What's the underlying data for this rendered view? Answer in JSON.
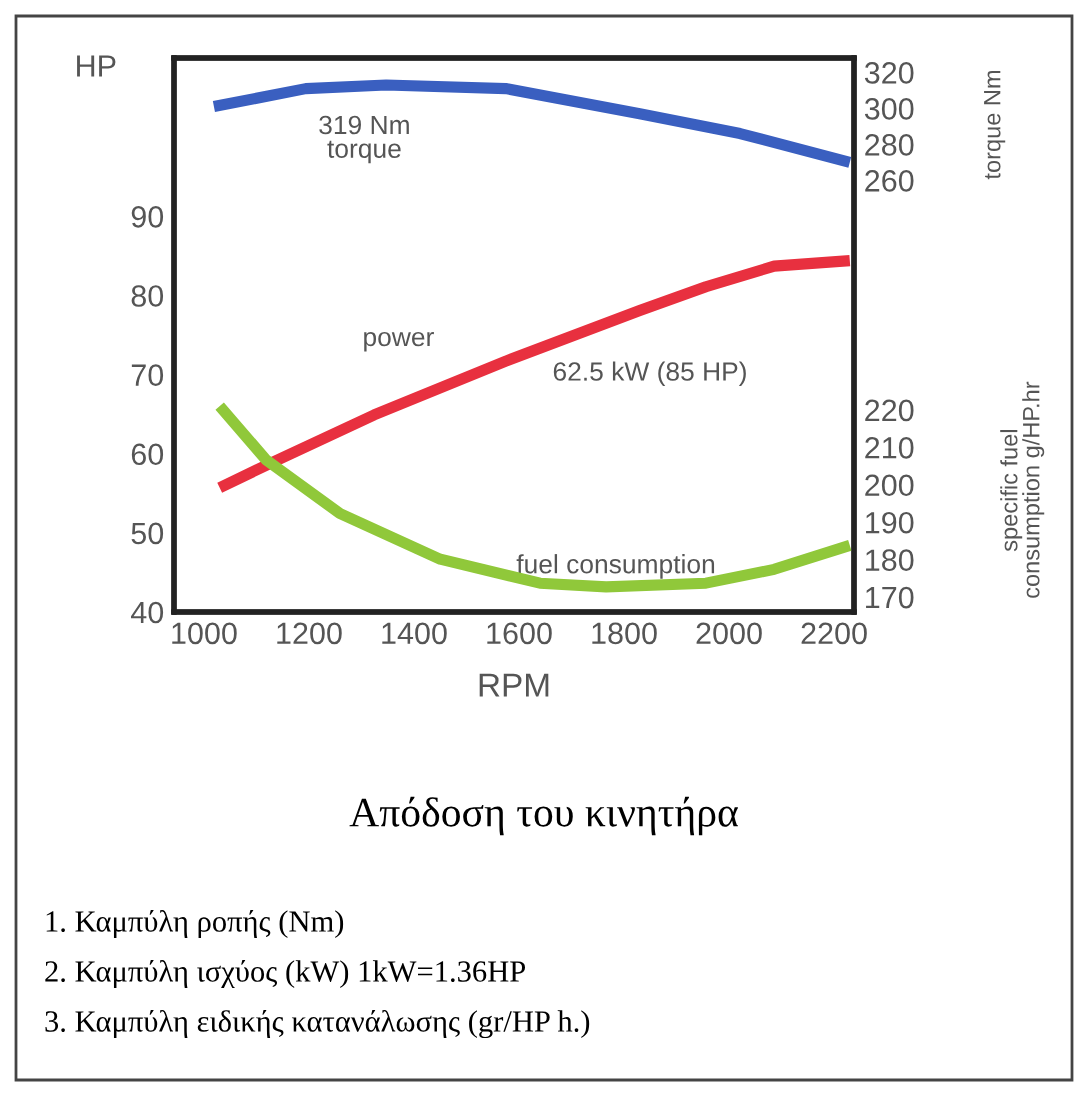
{
  "chart_data": {
    "type": "line",
    "title": "Απόδοση του κινητήρα",
    "xlabel": "RPM",
    "ylabel": "HP",
    "y2label": "torque Nm",
    "y3label": "specific fuel\nconsumption g/HP.hr",
    "annotations": [
      "319 Nm",
      "62.5 kW (85 HP)",
      "1. Καμπύλη ροπής (Nm)",
      "2. Καμπύλη ισχύος (kW) 1kW=1.36HP",
      "3. Καμπύλη ειδικής κατανάλωσης (gr/HP h.)"
    ],
    "xlim": [
      943,
      2238
    ],
    "xticks": [
      1000,
      1200,
      1400,
      1600,
      1800,
      2000,
      2200
    ],
    "ylim": [
      40,
      110
    ],
    "yticks": [
      40,
      50,
      60,
      70,
      80,
      90
    ],
    "y2lim": [
      20,
      328
    ],
    "y2ticks": [
      260,
      280,
      300,
      320
    ],
    "y3lim": [
      166,
      314
    ],
    "y3ticks": [
      170,
      180,
      190,
      200,
      210,
      220
    ],
    "grid": false,
    "legend": false,
    "marker": "none",
    "line_style": "solid",
    "series": [
      {
        "name": "torque",
        "color": "#3a5fc0",
        "axis": "y2",
        "x": [
          1019,
          1194,
          1347,
          1575,
          1830,
          2021,
          2230
        ],
        "values": [
          301,
          311,
          313,
          311,
          297,
          286,
          270
        ]
      },
      {
        "name": "power",
        "color": "#e8303f",
        "x": [
          1030,
          1133,
          1324,
          1575,
          1830,
          1956,
          2086,
          2230
        ],
        "values": [
          55.7,
          59,
          64.9,
          71.7,
          78.1,
          81.1,
          83.7,
          84.4
        ]
      },
      {
        "name": "fuel consumption",
        "color": "#90c83a",
        "axis": "y3",
        "x": [
          1030,
          1118,
          1259,
          1450,
          1640,
          1766,
          1956,
          2086,
          2230
        ],
        "values": [
          221,
          206.7,
          192.3,
          180.1,
          173.7,
          172.7,
          173.7,
          177.4,
          183.8
        ]
      }
    ]
  }
}
